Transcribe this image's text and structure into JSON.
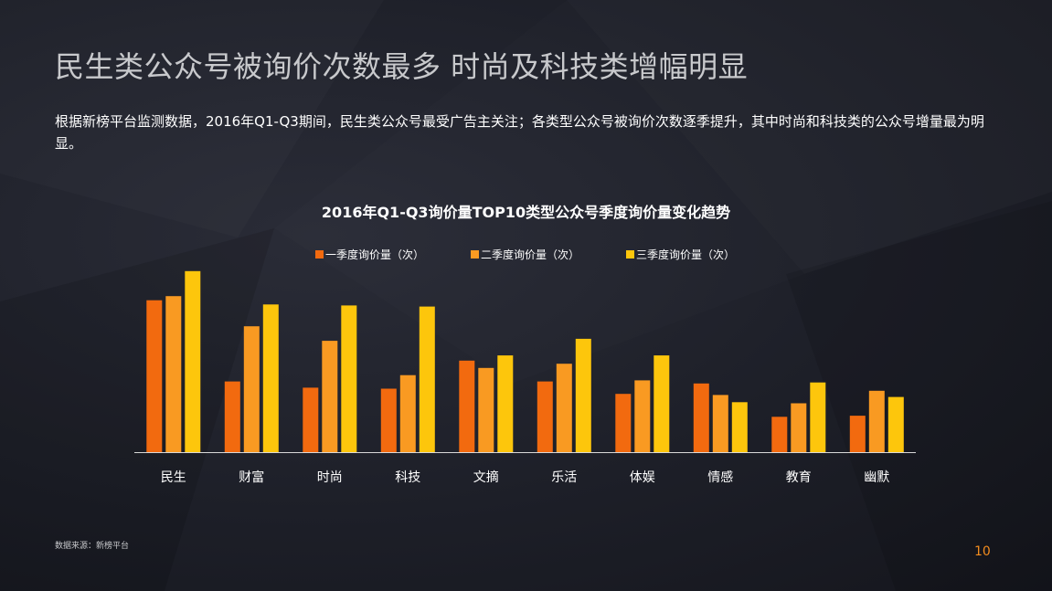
{
  "slide": {
    "title": "民生类公众号被询价次数最多  时尚及科技类增幅明显",
    "description": "根据新榜平台监测数据，2016年Q1-Q3期间，民生类公众号最受广告主关注；各类型公众号被询价次数逐季提升，其中时尚和科技类的公众号增量最为明显。",
    "source": "数据来源：新榜平台",
    "page_number": "10"
  },
  "chart_data": {
    "type": "bar",
    "title": "2016年Q1-Q3询价量TOP10类型公众号季度询价量变化趋势",
    "categories": [
      "民生",
      "财富",
      "时尚",
      "科技",
      "文摘",
      "乐活",
      "体娱",
      "情感",
      "教育",
      "幽默"
    ],
    "series": [
      {
        "name": "一季度询价量（次）",
        "color": "#f26a0f",
        "values": [
          146,
          68,
          62,
          61,
          88,
          68,
          56,
          66,
          34,
          35
        ]
      },
      {
        "name": "二季度询价量（次）",
        "color": "#f99a22",
        "values": [
          150,
          121,
          107,
          74,
          81,
          85,
          69,
          55,
          47,
          59
        ]
      },
      {
        "name": "三季度询价量（次）",
        "color": "#fdc60c",
        "values": [
          174,
          142,
          141,
          140,
          93,
          109,
          93,
          48,
          67,
          53
        ]
      }
    ],
    "ylim": [
      0,
      180
    ],
    "grid": false,
    "y_axis_visible": false,
    "legend_position": "top"
  }
}
